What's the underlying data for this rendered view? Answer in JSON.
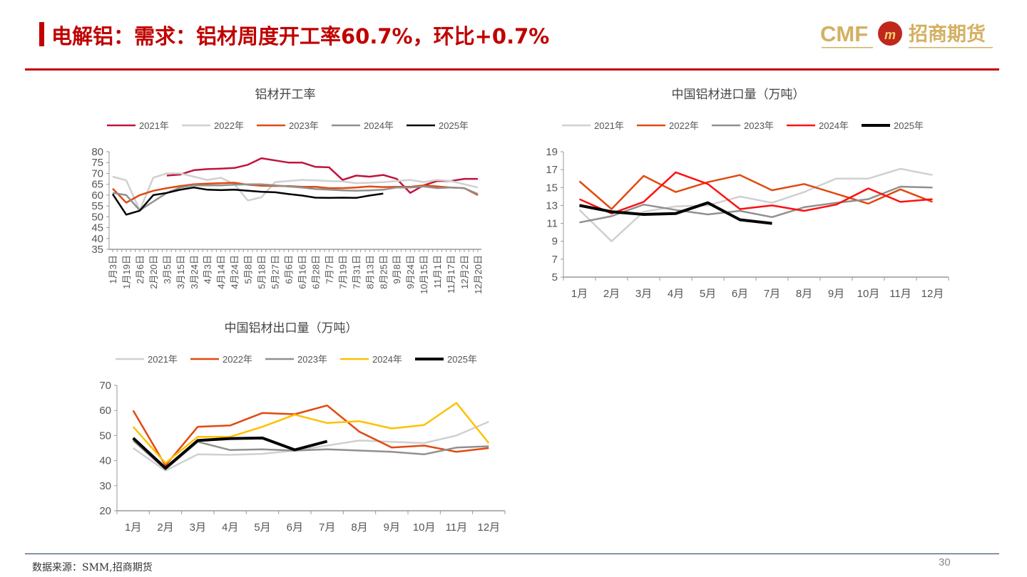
{
  "header": {
    "title": "电解铝：需求：铝材周度开工率60.7%，环比+0.7%",
    "logo_text": "CMF 招商期货"
  },
  "footer": {
    "source": "数据来源：SMM,招商期货",
    "page": "30"
  },
  "chart_data": [
    {
      "type": "line",
      "title": "铝材开工率",
      "ylim": [
        35,
        80
      ],
      "yticks": [
        35,
        40,
        45,
        50,
        55,
        60,
        65,
        70,
        75,
        80
      ],
      "grid": false,
      "legend": "top",
      "categories": [
        "1月3日",
        "1月19日",
        "2月6日",
        "2月20日",
        "3月5日",
        "3月15日",
        "3月24日",
        "4月3日",
        "4月14日",
        "4月24日",
        "5月8日",
        "5月18日",
        "5月27日",
        "6月6日",
        "6月16日",
        "6月28日",
        "7月7日",
        "7月19日",
        "7月31日",
        "8月13日",
        "8月25日",
        "9月8日",
        "9月24日",
        "10月15日",
        "11月1日",
        "11月17日",
        "12月2日",
        "12月20日"
      ],
      "series": [
        {
          "name": "2021年",
          "color": "#c0143c",
          "width": 2.5,
          "values": [
            null,
            null,
            null,
            null,
            69,
            69.5,
            71.5,
            72,
            72.2,
            72.5,
            74,
            77,
            76,
            75,
            75,
            73,
            72.8,
            67,
            69,
            68.5,
            69.3,
            67.5,
            61,
            64.5,
            66.5,
            66.5,
            67.5,
            67.5
          ]
        },
        {
          "name": "2022年",
          "color": "#d0d0d0",
          "width": 2.5,
          "values": [
            68.5,
            66.8,
            53,
            68,
            70,
            70,
            68.5,
            67,
            68,
            65,
            57.5,
            59,
            66,
            66.5,
            67,
            66.8,
            66.5,
            66.3,
            65.5,
            65.7,
            66,
            66.5,
            67,
            66,
            67,
            66.5,
            65,
            63.5
          ]
        },
        {
          "name": "2023年",
          "color": "#e04a10",
          "width": 2.5,
          "values": [
            63,
            56.5,
            60,
            62,
            63.2,
            64.2,
            65,
            65.3,
            65.5,
            65.7,
            64.8,
            64.3,
            64.2,
            64.2,
            63.8,
            63.8,
            63.2,
            63.2,
            63.5,
            64,
            63.7,
            63.8,
            63.8,
            64.5,
            64,
            63.5,
            63.2,
            60
          ]
        },
        {
          "name": "2024年",
          "color": "#909090",
          "width": 2.5,
          "values": [
            61,
            60,
            53,
            57,
            61,
            63.5,
            64.5,
            64.5,
            64.5,
            64.8,
            65,
            65,
            64.5,
            64,
            63.5,
            62.8,
            62.5,
            62.2,
            62,
            62.2,
            62.5,
            63.5,
            63.5,
            64,
            63.2,
            63.5,
            63.2,
            60.5
          ]
        },
        {
          "name": "2025年",
          "color": "#000000",
          "width": 2.5,
          "values": [
            60.5,
            51,
            52.8,
            60,
            61,
            62.5,
            63.5,
            62.5,
            62.3,
            62.5,
            62,
            61.5,
            61.3,
            60.5,
            59.8,
            58.8,
            58.7,
            58.8,
            58.7,
            59.8,
            60.7,
            null,
            null,
            null,
            null,
            null,
            null,
            null
          ]
        }
      ]
    },
    {
      "type": "line",
      "title": "中国铝材进口量（万吨）",
      "ylim": [
        5,
        19
      ],
      "yticks": [
        5,
        7,
        9,
        11,
        13,
        15,
        17,
        19
      ],
      "grid": false,
      "legend": "top",
      "categories": [
        "1月",
        "2月",
        "3月",
        "4月",
        "5月",
        "6月",
        "7月",
        "8月",
        "9月",
        "10月",
        "11月",
        "12月"
      ],
      "series": [
        {
          "name": "2021年",
          "color": "#d0d0d0",
          "width": 2.5,
          "values": [
            12.5,
            9,
            12.3,
            12.9,
            13,
            14,
            13.3,
            14.5,
            16,
            16,
            17.1,
            16.4
          ]
        },
        {
          "name": "2022年",
          "color": "#e04a10",
          "width": 2.5,
          "values": [
            15.7,
            12.6,
            16.3,
            14.5,
            15.6,
            16.4,
            14.7,
            15.4,
            14.3,
            13.2,
            14.8,
            13.4
          ]
        },
        {
          "name": "2023年",
          "color": "#909090",
          "width": 2.5,
          "values": [
            11.1,
            11.8,
            13.1,
            12.5,
            12,
            12.4,
            11.7,
            12.8,
            13.3,
            13.7,
            15.1,
            15
          ]
        },
        {
          "name": "2024年",
          "color": "#ff1010",
          "width": 2.5,
          "values": [
            13.7,
            12.1,
            13.4,
            16.7,
            15.4,
            12.6,
            13,
            12.4,
            13.1,
            14.9,
            13.4,
            13.7
          ]
        },
        {
          "name": "2025年",
          "color": "#000000",
          "width": 4,
          "values": [
            13,
            12.3,
            12,
            12.1,
            13.3,
            11.4,
            11,
            null,
            null,
            null,
            null,
            null
          ]
        }
      ]
    },
    {
      "type": "line",
      "title": "中国铝材出口量（万吨）",
      "ylim": [
        20,
        70
      ],
      "yticks": [
        20,
        30,
        40,
        50,
        60,
        70
      ],
      "grid": false,
      "legend": "top",
      "categories": [
        "1月",
        "2月",
        "3月",
        "4月",
        "5月",
        "6月",
        "7月",
        "8月",
        "9月",
        "10月",
        "11月",
        "12月"
      ],
      "series": [
        {
          "name": "2021年",
          "color": "#d0d0d0",
          "width": 2.5,
          "values": [
            45,
            36,
            42.5,
            42.3,
            42.7,
            44,
            46,
            48,
            47.5,
            47,
            50,
            55.5
          ]
        },
        {
          "name": "2022年",
          "color": "#e04a10",
          "width": 2.5,
          "values": [
            60,
            38,
            53.5,
            54,
            59,
            58.5,
            62,
            51.5,
            45.2,
            46,
            43.5,
            45
          ]
        },
        {
          "name": "2023年",
          "color": "#909090",
          "width": 2.5,
          "values": [
            48,
            36.5,
            47.5,
            44.2,
            44.5,
            44,
            44.5,
            44,
            43.5,
            42.5,
            45.2,
            45.7
          ]
        },
        {
          "name": "2024年",
          "color": "#ffc000",
          "width": 2.5,
          "values": [
            53.5,
            39,
            49.5,
            49.5,
            53.5,
            58.3,
            55,
            55.7,
            52.8,
            54.2,
            63,
            47
          ]
        },
        {
          "name": "2025年",
          "color": "#000000",
          "width": 4,
          "values": [
            49,
            37,
            48,
            48.8,
            49,
            44.3,
            47.7,
            null,
            null,
            null,
            null,
            null
          ]
        }
      ]
    }
  ]
}
